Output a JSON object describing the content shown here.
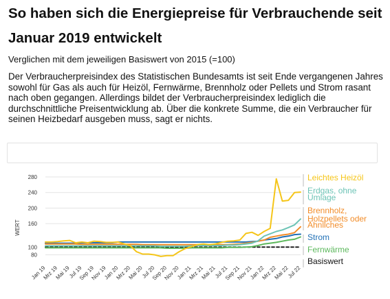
{
  "header": {
    "title": "So haben sich die Energiepreise für Verbrauchende seit Januar 2019 entwickelt",
    "subtitle": "Verglichen mit dem jeweiligen Basiswert von 2015 (=100)",
    "description": "Der Verbraucherpreisindex des Statistischen Bundesamts ist seit Ende vergangenen Jahres sowohl für Gas als auch für Heizöl, Fernwärme, Brennholz oder Pellets und Strom rasant nach oben gegangen. Allerdings bildet der Verbraucherpreisindex lediglich die durchschnittliche Preisentwicklung ab. Über die konkrete Summe, die ein Verbraucher für seinen Heizbedarf ausgeben muss, sagt er nichts."
  },
  "chart_data": {
    "type": "line",
    "ylabel": "WERT",
    "ylim": [
      67,
      287
    ],
    "yticks": [
      80,
      100,
      160,
      200,
      240,
      280
    ],
    "x": [
      "Jan 19",
      "Feb 19",
      "Mrz 19",
      "Apr 19",
      "Mai 19",
      "Jun 19",
      "Jul 19",
      "Aug 19",
      "Sep 19",
      "Okt 19",
      "Nov 19",
      "Dez 19",
      "Jan 20",
      "Feb 20",
      "Mrz 20",
      "Apr 20",
      "Mai 20",
      "Jun 20",
      "Jul 20",
      "Aug 20",
      "Sep 20",
      "Okt 20",
      "Nov 20",
      "Dez 20",
      "Jan 21",
      "Feb 21",
      "Mrz 21",
      "Apr 21",
      "Mai 21",
      "Jun 21",
      "Jul 21",
      "Aug 21",
      "Sep 21",
      "Okt 21",
      "Nov 21",
      "Dez 21",
      "Jan 22",
      "Feb 22",
      "Mrz 22",
      "Apr 22",
      "Mai 22",
      "Jun 22",
      "Jul 22"
    ],
    "xtick_labels": [
      "Jan 19",
      "Mrz 19",
      "Mai 19",
      "Jul 19",
      "Sep 19",
      "Nov 19",
      "Jan 20",
      "Mrz 20",
      "Mai 20",
      "Jul 20",
      "Sep 20",
      "Nov 20",
      "Jan 21",
      "Mrz 21",
      "Mai 21",
      "Jul 21",
      "Sep 21",
      "Nov 21",
      "Jan 22",
      "Mrz 22",
      "Mai 22",
      "Jul 22"
    ],
    "series": [
      {
        "name": "Leichtes Heizöl",
        "color": "#f5c518",
        "values": [
          113,
          113,
          114,
          116,
          117,
          111,
          113,
          111,
          115,
          114,
          112,
          112,
          113,
          108,
          103,
          88,
          82,
          82,
          80,
          76,
          78,
          78,
          88,
          96,
          101,
          106,
          108,
          106,
          108,
          112,
          115,
          116,
          118,
          135,
          138,
          130,
          140,
          148,
          275,
          218,
          220,
          240,
          241
        ]
      },
      {
        "name": "Erdgas, ohne Umlage",
        "color": "#6cc3b5",
        "values": [
          103,
          103,
          103,
          103,
          103,
          103,
          103,
          103,
          103,
          103,
          103,
          103,
          103,
          103,
          103,
          103,
          103,
          103,
          103,
          102,
          102,
          102,
          102,
          102,
          103,
          104,
          104,
          104,
          104,
          104,
          105,
          105,
          106,
          108,
          110,
          116,
          128,
          134,
          140,
          144,
          150,
          157,
          172
        ]
      },
      {
        "name": "Brennholz, Holzpellets oder Ähnliches",
        "color": "#f28c28",
        "values": [
          108,
          108,
          108,
          108,
          108,
          108,
          107,
          107,
          107,
          107,
          107,
          107,
          107,
          107,
          107,
          107,
          106,
          106,
          106,
          106,
          106,
          106,
          106,
          106,
          106,
          106,
          106,
          106,
          106,
          106,
          106,
          107,
          108,
          110,
          112,
          115,
          118,
          125,
          128,
          131,
          133,
          137,
          152
        ]
      },
      {
        "name": "Strom",
        "color": "#1f6fb5",
        "values": [
          110,
          110,
          110,
          110,
          110,
          110,
          111,
          111,
          111,
          111,
          111,
          111,
          113,
          113,
          113,
          113,
          113,
          113,
          113,
          113,
          113,
          113,
          113,
          113,
          113,
          113,
          113,
          113,
          113,
          113,
          113,
          113,
          113,
          113,
          114,
          115,
          118,
          120,
          122,
          126,
          128,
          132,
          133
        ]
      },
      {
        "name": "Fernwärme",
        "color": "#5cb85c",
        "values": [
          98,
          98,
          98,
          98,
          98,
          98,
          98,
          98,
          98,
          98,
          98,
          98,
          98,
          98,
          98,
          98,
          98,
          98,
          98,
          98,
          97,
          97,
          97,
          97,
          98,
          98,
          98,
          98,
          98,
          98,
          99,
          99,
          99,
          100,
          101,
          104,
          108,
          110,
          112,
          115,
          118,
          120,
          126
        ]
      },
      {
        "name": "Basiswert",
        "color": "#111111",
        "dashed": true,
        "values": [
          100,
          100,
          100,
          100,
          100,
          100,
          100,
          100,
          100,
          100,
          100,
          100,
          100,
          100,
          100,
          100,
          100,
          100,
          100,
          100,
          100,
          100,
          100,
          100,
          100,
          100,
          100,
          100,
          100,
          100,
          100,
          100,
          100,
          100,
          100,
          100,
          100,
          100,
          100,
          100,
          100,
          100,
          100
        ]
      }
    ]
  }
}
